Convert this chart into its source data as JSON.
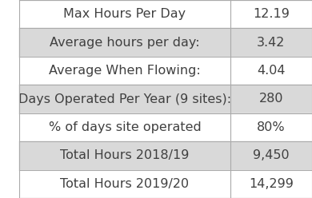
{
  "rows": [
    {
      "label": "Max Hours Per Day",
      "value": "12.19",
      "bg": "#ffffff"
    },
    {
      "label": "Average hours per day:",
      "value": "3.42",
      "bg": "#d9d9d9"
    },
    {
      "label": "Average When Flowing:",
      "value": "4.04",
      "bg": "#ffffff"
    },
    {
      "label": "Days Operated Per Year (9 sites):",
      "value": "280",
      "bg": "#d9d9d9"
    },
    {
      "label": "% of days site operated",
      "value": "80%",
      "bg": "#ffffff"
    },
    {
      "label": "Total Hours 2018/19",
      "value": "9,450",
      "bg": "#d9d9d9"
    },
    {
      "label": "Total Hours 2019/20",
      "value": "14,299",
      "bg": "#ffffff"
    }
  ],
  "col_split": 0.72,
  "border_color": "#aaaaaa",
  "text_color": "#404040",
  "font_size": 11.5,
  "fig_bg": "#ffffff"
}
